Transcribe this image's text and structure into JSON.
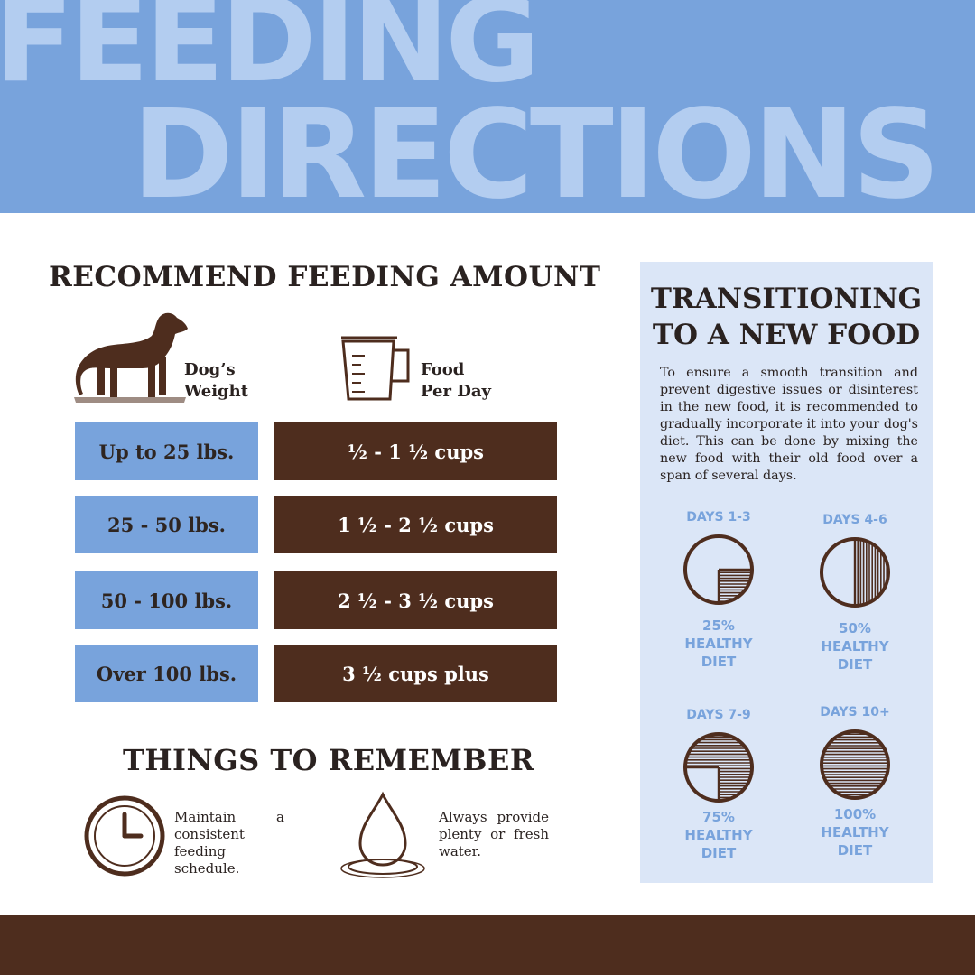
{
  "header": {
    "line1": "FEEDING",
    "line2": "DIRECTIONS"
  },
  "feeding": {
    "title": "RECOMMEND FEEDING AMOUNT",
    "dog_label": [
      "Dog’s",
      "Weight"
    ],
    "food_label": [
      "Food",
      "Per Day"
    ],
    "rows": [
      {
        "weight": "Up to 25 lbs.",
        "amount": "½ - 1 ½ cups"
      },
      {
        "weight": "25  - 50 lbs.",
        "amount": "1 ½ - 2 ½ cups"
      },
      {
        "weight": "50 - 100 lbs.",
        "amount": "2 ½ - 3 ½ cups"
      },
      {
        "weight": "Over 100 lbs.",
        "amount": "3 ½ cups plus"
      }
    ]
  },
  "remember": {
    "title": "THINGS TO REMEMBER",
    "tips": [
      {
        "icon": "clock-icon",
        "text": "Maintain a consistent feeding schedule."
      },
      {
        "icon": "water-drop-icon",
        "text": "Always provide plenty or fresh water."
      }
    ]
  },
  "transition": {
    "title_line1": "TRANSITIONING",
    "title_line2": "TO A NEW FOOD",
    "description": "To ensure a smooth transition and prevent digestive issues or disinterest in the new food, it is recommended to gradually incorporate it into your dog's diet. This can be done by mixing the new food with their old food over a span of several days.",
    "stages": [
      {
        "days": "DAYS 1-3",
        "percent": 25,
        "lines": [
          "25%",
          "HEALTHY",
          "DIET"
        ]
      },
      {
        "days": "DAYS 4-6",
        "percent": 50,
        "lines": [
          "50%",
          "HEALTHY",
          "DIET"
        ]
      },
      {
        "days": "DAYS 7-9",
        "percent": 75,
        "lines": [
          "75%",
          "HEALTHY",
          "DIET"
        ]
      },
      {
        "days": "DAYS 10+",
        "percent": 100,
        "lines": [
          "100%",
          "HEALTHY",
          "DIET"
        ]
      }
    ]
  },
  "colors": {
    "blue": "#78a3dc",
    "light_blue": "#b3cdf0",
    "panel": "#dbe6f7",
    "brown": "#4e2d1e",
    "dark_text": "#2a2220"
  }
}
